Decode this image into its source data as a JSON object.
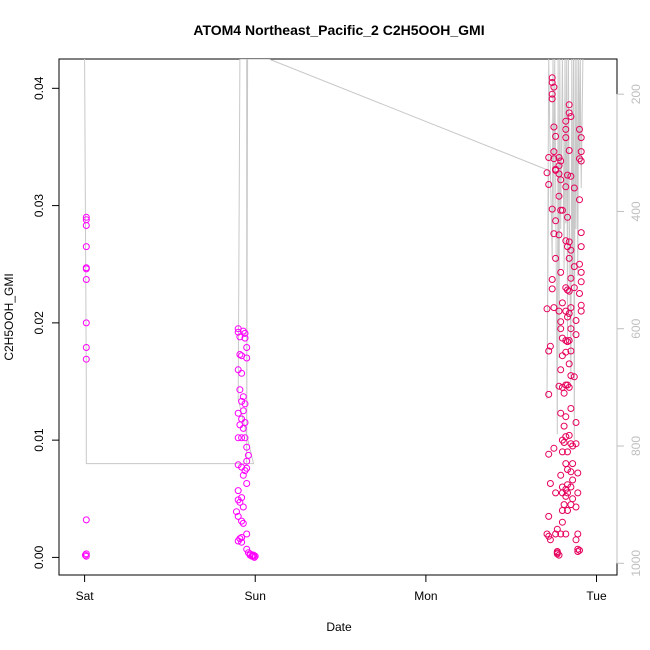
{
  "chart_data": {
    "type": "scatter",
    "title": "ATOM4 Northeast_Pacific_2 C2H5OOH_GMI",
    "xlabel": "Date",
    "ylabel": "C2H5OOH_GMI",
    "x_tick_labels": [
      "Sat",
      "Sun",
      "Mon",
      "Tue"
    ],
    "x_tick_values": [
      0,
      1,
      2,
      3
    ],
    "x_range": [
      -0.15,
      3.12
    ],
    "ylim": [
      -0.0015,
      0.0425
    ],
    "y_ticks": [
      0.0,
      0.01,
      0.02,
      0.03,
      0.04
    ],
    "y_tick_labels": [
      "0.00",
      "0.01",
      "0.02",
      "0.03",
      "0.04"
    ],
    "y2_ticks": [
      200,
      400,
      600,
      800,
      1000
    ],
    "y2_tick_labels": [
      "200",
      "400",
      "600",
      "800",
      "1000"
    ],
    "y2_range": [
      1020,
      140
    ],
    "colors": {
      "series_1": "#ff00ff",
      "series_2": "#e6005c",
      "altitude_line": "#c8c8c8",
      "right_axis": "#bfbfbf"
    },
    "series": [
      {
        "color": "#ff00ff",
        "points": [
          [
            0.01,
            0.029
          ],
          [
            0.01,
            0.0288
          ],
          [
            0.01,
            0.0283
          ],
          [
            0.01,
            0.0265
          ],
          [
            0.01,
            0.0247
          ],
          [
            0.01,
            0.0246
          ],
          [
            0.01,
            0.0237
          ],
          [
            0.01,
            0.02
          ],
          [
            0.01,
            0.0179
          ],
          [
            0.01,
            0.0169
          ],
          [
            0.01,
            0.0032
          ],
          [
            0.01,
            0.0003
          ],
          [
            0.01,
            0.0001
          ],
          [
            0.005,
            0.0002
          ],
          [
            0.9,
            0.0195
          ],
          [
            0.9,
            0.0192
          ],
          [
            0.91,
            0.0188
          ],
          [
            0.91,
            0.0173
          ],
          [
            0.92,
            0.0172
          ],
          [
            0.9,
            0.016
          ],
          [
            0.92,
            0.0157
          ],
          [
            0.91,
            0.0143
          ],
          [
            0.93,
            0.0137
          ],
          [
            0.92,
            0.0133
          ],
          [
            0.94,
            0.0131
          ],
          [
            0.93,
            0.0125
          ],
          [
            0.9,
            0.0123
          ],
          [
            0.92,
            0.0118
          ],
          [
            0.94,
            0.0115
          ],
          [
            0.91,
            0.0113
          ],
          [
            0.93,
            0.011
          ],
          [
            0.9,
            0.0102
          ],
          [
            0.92,
            0.0102
          ],
          [
            0.94,
            0.0102
          ],
          [
            0.95,
            0.0094
          ],
          [
            0.96,
            0.0087
          ],
          [
            0.95,
            0.0082
          ],
          [
            0.9,
            0.0079
          ],
          [
            0.92,
            0.0077
          ],
          [
            0.95,
            0.0076
          ],
          [
            0.94,
            0.0074
          ],
          [
            0.93,
            0.007
          ],
          [
            0.95,
            0.0063
          ],
          [
            0.9,
            0.0057
          ],
          [
            0.92,
            0.0051
          ],
          [
            0.9,
            0.0049
          ],
          [
            0.91,
            0.0047
          ],
          [
            0.93,
            0.0043
          ],
          [
            0.89,
            0.0039
          ],
          [
            0.9,
            0.0035
          ],
          [
            0.92,
            0.0031
          ],
          [
            0.93,
            0.0029
          ],
          [
            0.95,
            0.002
          ],
          [
            0.92,
            0.0017
          ],
          [
            0.91,
            0.0016
          ],
          [
            0.9,
            0.0014
          ],
          [
            0.92,
            0.0013
          ],
          [
            0.95,
            0.0007
          ],
          [
            0.96,
            0.0004
          ],
          [
            0.97,
            0.0002
          ],
          [
            0.98,
            0.0001
          ],
          [
            0.99,
            0.0001
          ],
          [
            1.0,
            0.0001
          ],
          [
            0.97,
            0.0003
          ],
          [
            0.985,
            0.0002
          ],
          [
            0.995,
            0.0
          ],
          [
            0.99,
            0.0002
          ],
          [
            0.93,
            0.0193
          ],
          [
            0.94,
            0.0191
          ],
          [
            0.94,
            0.0187
          ],
          [
            0.95,
            0.0179
          ],
          [
            0.95,
            0.017
          ]
        ]
      },
      {
        "color": "#e6005c",
        "points": [
          [
            2.72,
            0.0341
          ],
          [
            2.71,
            0.0328
          ],
          [
            2.72,
            0.0318
          ],
          [
            2.71,
            0.0212
          ],
          [
            2.72,
            0.0176
          ],
          [
            2.73,
            0.018
          ],
          [
            2.72,
            0.0139
          ],
          [
            2.72,
            0.0088
          ],
          [
            2.73,
            0.0063
          ],
          [
            2.72,
            0.0035
          ],
          [
            2.71,
            0.002
          ],
          [
            2.72,
            0.0018
          ],
          [
            2.73,
            0.0015
          ],
          [
            2.74,
            0.0409
          ],
          [
            2.74,
            0.0405
          ],
          [
            2.75,
            0.0401
          ],
          [
            2.74,
            0.0395
          ],
          [
            2.74,
            0.0391
          ],
          [
            2.75,
            0.0367
          ],
          [
            2.76,
            0.0359
          ],
          [
            2.75,
            0.0346
          ],
          [
            2.75,
            0.034
          ],
          [
            2.76,
            0.0331
          ],
          [
            2.76,
            0.033
          ],
          [
            2.74,
            0.0297
          ],
          [
            2.75,
            0.0276
          ],
          [
            2.74,
            0.0237
          ],
          [
            2.76,
            0.0255
          ],
          [
            2.74,
            0.0229
          ],
          [
            2.75,
            0.0213
          ],
          [
            2.76,
            0.0287
          ],
          [
            2.75,
            0.0093
          ],
          [
            2.76,
            0.0055
          ],
          [
            2.77,
            0.0024
          ],
          [
            2.76,
            0.002
          ],
          [
            2.77,
            0.0004
          ],
          [
            2.78,
            0.0002
          ],
          [
            2.77,
            0.0005
          ],
          [
            2.77,
            0.0003
          ],
          [
            2.78,
            0.0341
          ],
          [
            2.78,
            0.0334
          ],
          [
            2.79,
            0.0338
          ],
          [
            2.78,
            0.0327
          ],
          [
            2.79,
            0.0322
          ],
          [
            2.78,
            0.0308
          ],
          [
            2.79,
            0.0296
          ],
          [
            2.8,
            0.0296
          ],
          [
            2.78,
            0.0275
          ],
          [
            2.79,
            0.0243
          ],
          [
            2.78,
            0.021
          ],
          [
            2.79,
            0.0201
          ],
          [
            2.8,
            0.0217
          ],
          [
            2.79,
            0.0195
          ],
          [
            2.8,
            0.0187
          ],
          [
            2.8,
            0.0172
          ],
          [
            2.79,
            0.016
          ],
          [
            2.78,
            0.0146
          ],
          [
            2.8,
            0.0145
          ],
          [
            2.81,
            0.014
          ],
          [
            2.79,
            0.0123
          ],
          [
            2.81,
            0.0112
          ],
          [
            2.8,
            0.01
          ],
          [
            2.81,
            0.0098
          ],
          [
            2.8,
            0.009
          ],
          [
            2.79,
            0.007
          ],
          [
            2.8,
            0.006
          ],
          [
            2.8,
            0.0055
          ],
          [
            2.81,
            0.0045
          ],
          [
            2.8,
            0.004
          ],
          [
            2.8,
            0.003
          ],
          [
            2.79,
            0.002
          ],
          [
            2.82,
            0.0372
          ],
          [
            2.82,
            0.0365
          ],
          [
            2.82,
            0.0358
          ],
          [
            2.83,
            0.0326
          ],
          [
            2.82,
            0.0316
          ],
          [
            2.83,
            0.029
          ],
          [
            2.82,
            0.027
          ],
          [
            2.83,
            0.0265
          ],
          [
            2.82,
            0.023
          ],
          [
            2.83,
            0.0228
          ],
          [
            2.82,
            0.021
          ],
          [
            2.83,
            0.0205
          ],
          [
            2.82,
            0.0185
          ],
          [
            2.83,
            0.0184
          ],
          [
            2.82,
            0.0175
          ],
          [
            2.82,
            0.0147
          ],
          [
            2.83,
            0.0147
          ],
          [
            2.82,
            0.012
          ],
          [
            2.82,
            0.0103
          ],
          [
            2.83,
            0.009
          ],
          [
            2.82,
            0.008
          ],
          [
            2.83,
            0.0075
          ],
          [
            2.83,
            0.0062
          ],
          [
            2.82,
            0.0058
          ],
          [
            2.83,
            0.0055
          ],
          [
            2.82,
            0.0052
          ],
          [
            2.83,
            0.004
          ],
          [
            2.82,
            0.002
          ],
          [
            2.84,
            0.0386
          ],
          [
            2.84,
            0.0379
          ],
          [
            2.85,
            0.0376
          ],
          [
            2.84,
            0.0347
          ],
          [
            2.85,
            0.0325
          ],
          [
            2.84,
            0.0269
          ],
          [
            2.85,
            0.0262
          ],
          [
            2.84,
            0.0255
          ],
          [
            2.85,
            0.0238
          ],
          [
            2.84,
            0.0227
          ],
          [
            2.85,
            0.0213
          ],
          [
            2.84,
            0.0208
          ],
          [
            2.85,
            0.0195
          ],
          [
            2.84,
            0.0185
          ],
          [
            2.85,
            0.0176
          ],
          [
            2.84,
            0.0165
          ],
          [
            2.85,
            0.0155
          ],
          [
            2.84,
            0.0145
          ],
          [
            2.85,
            0.0127
          ],
          [
            2.84,
            0.0104
          ],
          [
            2.85,
            0.0097
          ],
          [
            2.86,
            0.0095
          ],
          [
            2.86,
            0.008
          ],
          [
            2.85,
            0.0073
          ],
          [
            2.86,
            0.0066
          ],
          [
            2.85,
            0.006
          ],
          [
            2.86,
            0.005
          ],
          [
            2.85,
            0.0045
          ],
          [
            2.87,
            0.0315
          ],
          [
            2.87,
            0.0248
          ],
          [
            2.87,
            0.023
          ],
          [
            2.88,
            0.0202
          ],
          [
            2.88,
            0.019
          ],
          [
            2.87,
            0.0154
          ],
          [
            2.88,
            0.0115
          ],
          [
            2.88,
            0.0097
          ],
          [
            2.89,
            0.0072
          ],
          [
            2.89,
            0.0055
          ],
          [
            2.88,
            0.0043
          ],
          [
            2.89,
            0.002
          ],
          [
            2.88,
            0.0015
          ],
          [
            2.89,
            0.0007
          ],
          [
            2.89,
            0.0005
          ],
          [
            2.9,
            0.0006
          ],
          [
            2.9,
            0.0365
          ],
          [
            2.91,
            0.0358
          ],
          [
            2.91,
            0.0346
          ],
          [
            2.9,
            0.034
          ],
          [
            2.91,
            0.0338
          ],
          [
            2.9,
            0.0305
          ],
          [
            2.91,
            0.0277
          ],
          [
            2.91,
            0.0265
          ],
          [
            2.9,
            0.025
          ],
          [
            2.91,
            0.0243
          ],
          [
            2.91,
            0.0235
          ],
          [
            2.9,
            0.0225
          ],
          [
            2.91,
            0.0215
          ],
          [
            2.91,
            0.021
          ]
        ]
      }
    ],
    "altitude_line": [
      [
        0.0,
        140
      ],
      [
        0.01,
        690
      ],
      [
        0.01,
        830
      ],
      [
        0.99,
        830
      ],
      [
        0.9,
        720
      ],
      [
        0.91,
        140
      ],
      [
        0.95,
        140
      ],
      [
        0.95,
        830
      ],
      [
        0.955,
        140
      ],
      [
        1.08,
        140
      ],
      [
        2.72,
        330
      ],
      [
        2.71,
        720
      ],
      [
        2.72,
        140
      ],
      [
        2.73,
        330
      ],
      [
        2.74,
        480
      ],
      [
        2.745,
        140
      ],
      [
        2.75,
        420
      ],
      [
        2.755,
        140
      ],
      [
        2.76,
        330
      ],
      [
        2.77,
        780
      ],
      [
        2.775,
        140
      ],
      [
        2.78,
        650
      ],
      [
        2.785,
        140
      ],
      [
        2.79,
        430
      ],
      [
        2.8,
        140
      ],
      [
        2.81,
        500
      ],
      [
        2.815,
        140
      ],
      [
        2.82,
        420
      ],
      [
        2.825,
        140
      ],
      [
        2.83,
        620
      ],
      [
        2.835,
        140
      ],
      [
        2.84,
        380
      ],
      [
        2.85,
        690
      ],
      [
        2.855,
        140
      ],
      [
        2.86,
        520
      ],
      [
        2.865,
        140
      ],
      [
        2.87,
        790
      ],
      [
        2.875,
        140
      ],
      [
        2.88,
        430
      ],
      [
        2.885,
        140
      ],
      [
        2.89,
        510
      ],
      [
        2.895,
        140
      ],
      [
        2.9,
        310
      ],
      [
        2.905,
        140
      ],
      [
        2.91,
        360
      ],
      [
        2.92,
        140
      ]
    ]
  }
}
